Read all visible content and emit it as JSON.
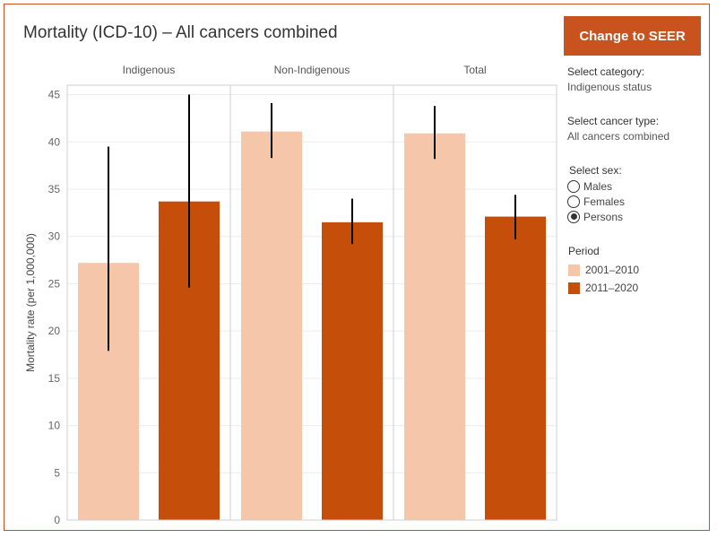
{
  "title": "Mortality (ICD-10) – All cancers combined",
  "button": {
    "label": "Change to SEER"
  },
  "controls": {
    "category": {
      "label": "Select category:",
      "value": "Indigenous status"
    },
    "cancer_type": {
      "label": "Select cancer type:",
      "value": "All cancers combined"
    },
    "sex": {
      "label": "Select sex:",
      "options": [
        {
          "label": "Males",
          "selected": false
        },
        {
          "label": "Females",
          "selected": false
        },
        {
          "label": "Persons",
          "selected": true
        }
      ]
    }
  },
  "legend": {
    "title": "Period",
    "items": [
      {
        "label": "2001–2010",
        "color": "#f5c6aa"
      },
      {
        "label": "2011–2020",
        "color": "#c44e0a"
      }
    ]
  },
  "chart_data": {
    "type": "bar",
    "ylabel": "Mortality rate (per 1,000,000)",
    "ylim": [
      0,
      46
    ],
    "yticks": [
      0,
      5,
      10,
      15,
      20,
      25,
      30,
      35,
      40,
      45
    ],
    "grid": true,
    "panels": [
      "Indigenous",
      "Non-Indigenous",
      "Total"
    ],
    "series": [
      {
        "name": "2001–2010",
        "color": "#f5c6aa",
        "values": [
          27.2,
          41.1,
          40.9
        ],
        "ci_low": [
          17.9,
          38.3,
          38.2
        ],
        "ci_high": [
          39.5,
          44.1,
          43.8
        ]
      },
      {
        "name": "2011–2020",
        "color": "#c44e0a",
        "values": [
          33.7,
          31.5,
          32.1
        ],
        "ci_low": [
          24.6,
          29.2,
          29.7
        ],
        "ci_high": [
          45.0,
          34.0,
          34.4
        ]
      }
    ]
  }
}
